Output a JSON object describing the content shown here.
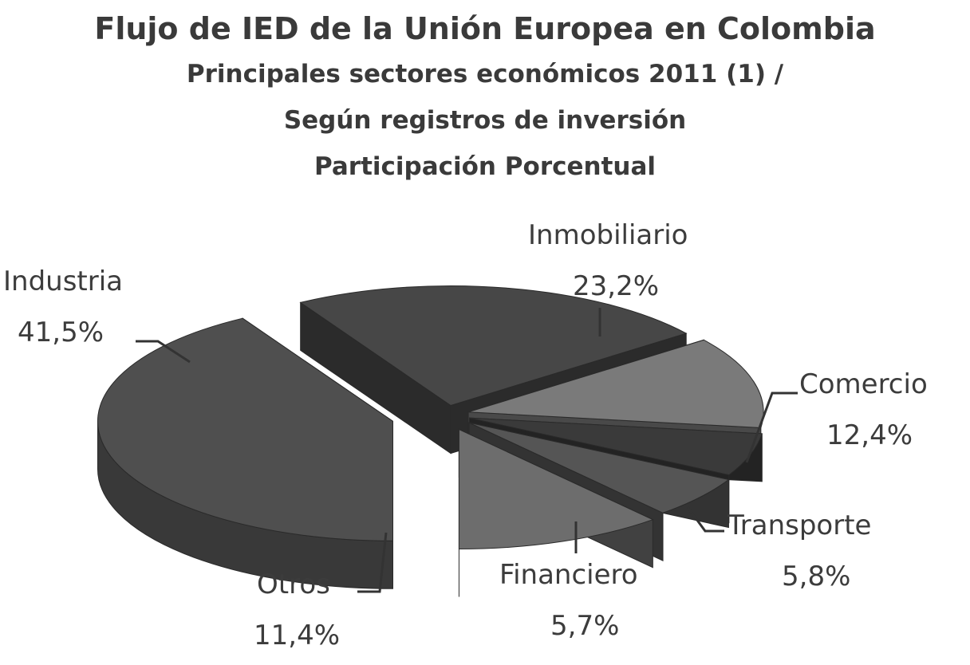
{
  "chart_data": {
    "type": "pie",
    "title": "Flujo de IED de la Unión Europea en Colombia",
    "subtitles": [
      "Principales sectores económicos 2011 (1) /",
      "Según registros de inversión",
      "Participación  Porcentual"
    ],
    "slices": [
      {
        "label": "Industria",
        "value_label": "41,5%",
        "value": 41.5,
        "color": "#4f4f4f"
      },
      {
        "label": "Inmobiliario",
        "value_label": "23,2%",
        "value": 23.2,
        "color": "#474747"
      },
      {
        "label": "Comercio",
        "value_label": "12,4%",
        "value": 12.4,
        "color": "#7a7a7a"
      },
      {
        "label": "Transporte",
        "value_label": "5,8%",
        "value": 5.8,
        "color": "#3a3a3a"
      },
      {
        "label": "Financiero",
        "value_label": "5,7%",
        "value": 5.7,
        "color": "#555555"
      },
      {
        "label": "Otros",
        "value_label": "11,4%",
        "value": 11.4,
        "color": "#6d6d6d"
      }
    ]
  }
}
